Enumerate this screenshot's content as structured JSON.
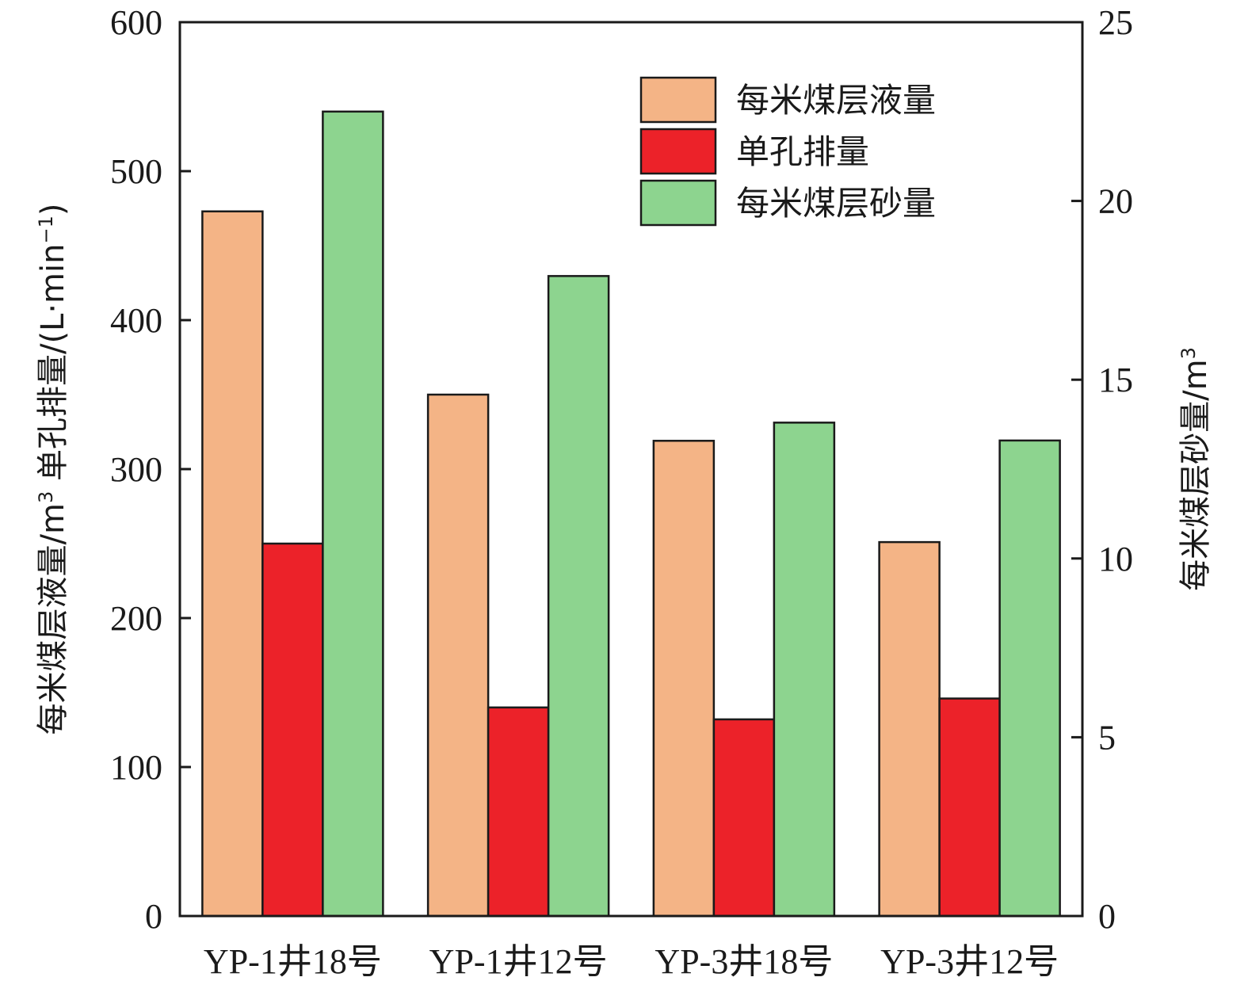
{
  "chart_data": {
    "type": "bar",
    "categories": [
      "YP-1井18号",
      "YP-1井12号",
      "YP-3井18号",
      "YP-3井12号"
    ],
    "series": [
      {
        "name": "每米煤层液量",
        "axis": "left",
        "color": "#f4b486",
        "values": [
          473,
          350,
          319,
          251
        ]
      },
      {
        "name": "单孔排量",
        "axis": "left",
        "color": "#ec2229",
        "values": [
          250,
          140,
          132,
          146
        ]
      },
      {
        "name": "每米煤层砂量",
        "axis": "right",
        "color": "#8dd48f",
        "values": [
          22.5,
          17.9,
          13.8,
          13.3
        ]
      }
    ],
    "y_left": {
      "label_main": "每米煤层液量/m",
      "label_main_sup": "3",
      "label_second": "  单孔排量/(L·min",
      "label_second_sup": "−1",
      "label_second_end": ")",
      "ylim": [
        0,
        600
      ],
      "ticks": [
        "0",
        "100",
        "200",
        "300",
        "400",
        "500",
        "600"
      ]
    },
    "y_right": {
      "label_main": "每米煤层砂量/m",
      "label_main_sup": "3",
      "ylim": [
        0,
        25
      ],
      "ticks": [
        "0",
        "5",
        "10",
        "15",
        "20",
        "25"
      ]
    },
    "legend_position": "top-right",
    "grid": false
  }
}
